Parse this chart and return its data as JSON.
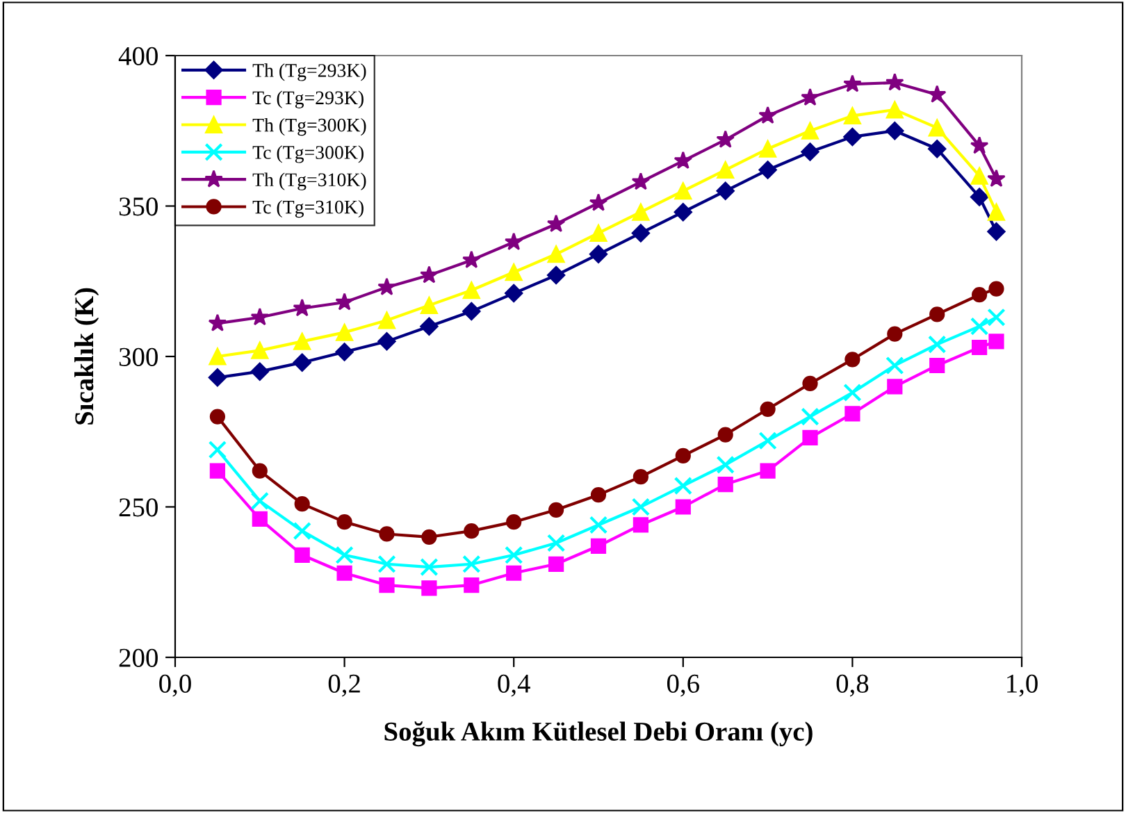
{
  "chart_data": {
    "type": "line",
    "xlabel": "Soğuk Akım Kütlesel Debi Oranı (yc)",
    "ylabel": "Sıcaklık (K)",
    "x": [
      0.05,
      0.1,
      0.15,
      0.2,
      0.25,
      0.3,
      0.35,
      0.4,
      0.45,
      0.5,
      0.55,
      0.6,
      0.65,
      0.7,
      0.75,
      0.8,
      0.85,
      0.9,
      0.95,
      0.97
    ],
    "xlim": [
      0,
      1
    ],
    "xticks": [
      {
        "value": 0,
        "label": "0,0"
      },
      {
        "value": 0.2,
        "label": "0,2"
      },
      {
        "value": 0.4,
        "label": "0,4"
      },
      {
        "value": 0.6,
        "label": "0,6"
      },
      {
        "value": 0.8,
        "label": "0,8"
      },
      {
        "value": 1,
        "label": "1,0"
      }
    ],
    "ylim": [
      200,
      400
    ],
    "yticks": [
      200,
      250,
      300,
      350,
      400
    ],
    "grid": false,
    "legend": "top left",
    "line_style": "solid",
    "series": [
      {
        "name": "Th (Tg=293K)",
        "color": "#000080",
        "marker": "diamond",
        "values": [
          293,
          295,
          298,
          301.5,
          305,
          310,
          315,
          321,
          327,
          334,
          341,
          348,
          355,
          362,
          368,
          373,
          375,
          369,
          353,
          341.5
        ]
      },
      {
        "name": "Tc (Tg=293K)",
        "color": "#ff00ff",
        "marker": "square",
        "values": [
          262,
          246,
          234,
          228,
          224,
          223,
          224,
          228,
          231,
          237,
          244,
          250,
          257.5,
          262,
          273,
          281,
          290,
          297,
          303,
          305
        ]
      },
      {
        "name": "Th (Tg=300K)",
        "color": "#ffff00",
        "marker": "triangle",
        "values": [
          300,
          302,
          305,
          308,
          312,
          317,
          322,
          328,
          334,
          341,
          348,
          355,
          362,
          369,
          375,
          380,
          382,
          376,
          360,
          348
        ]
      },
      {
        "name": "Tc (Tg=300K)",
        "color": "#00ffff",
        "marker": "cross",
        "values": [
          269,
          252,
          242,
          234,
          231,
          230,
          231,
          234,
          238,
          244,
          250,
          257,
          264,
          272,
          280,
          288,
          297,
          304,
          310,
          313
        ]
      },
      {
        "name": "Th (Tg=310K)",
        "color": "#800080",
        "marker": "star",
        "values": [
          311,
          313,
          316,
          318,
          323,
          327,
          332,
          338,
          344,
          351,
          358,
          365,
          372,
          380,
          386,
          390.5,
          391,
          387,
          370,
          359
        ]
      },
      {
        "name": "Tc (Tg=310K)",
        "color": "#800000",
        "marker": "circle",
        "values": [
          280,
          262,
          251,
          245,
          241,
          240,
          242,
          245,
          249,
          254,
          260,
          267,
          274,
          282.5,
          291,
          299,
          307.5,
          314,
          320.5,
          322.5
        ]
      }
    ]
  }
}
